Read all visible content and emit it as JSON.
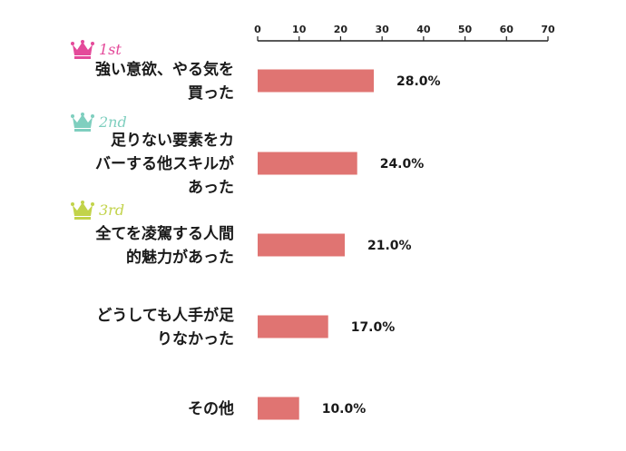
{
  "chart_data": {
    "type": "bar",
    "orientation": "horizontal",
    "categories": [
      [
        "強い意欲、やる気を",
        "買った"
      ],
      [
        "足りない要素をカ",
        "バーする他スキルが",
        "あった"
      ],
      [
        "全てを凌駕する人間",
        "的魅力があった"
      ],
      [
        "どうしても人手が足",
        "りなかった"
      ],
      [
        "その他"
      ]
    ],
    "values": [
      28.0,
      24.0,
      21.0,
      17.0,
      10.0
    ],
    "value_labels": [
      "28.0%",
      "24.0%",
      "21.0%",
      "17.0%",
      "10.0%"
    ],
    "ticks": [
      0,
      10,
      20,
      30,
      40,
      50,
      60,
      70
    ],
    "xlim": [
      0,
      70
    ],
    "axis_position": "top",
    "grid": false,
    "bar_color": "#e07472",
    "ranks": [
      {
        "label": "1st",
        "color": "#e44a9a"
      },
      {
        "label": "2nd",
        "color": "#7fcfbf"
      },
      {
        "label": "3rd",
        "color": "#c2d34a"
      }
    ]
  }
}
